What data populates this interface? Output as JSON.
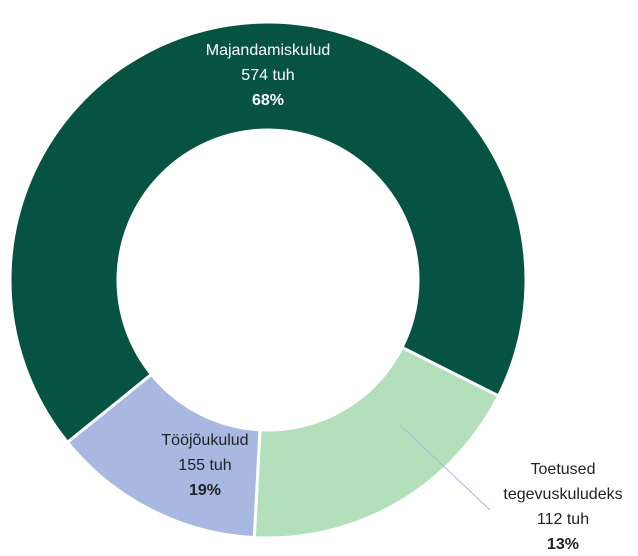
{
  "chart_data": {
    "type": "donut",
    "categories": [
      "Majandamiskulud",
      "Tööjõukulud",
      "Toetused tegevuskuludeks"
    ],
    "values": [
      574,
      155,
      112
    ],
    "value_labels": [
      "574 tuh",
      "155 tuh",
      "112 tuh"
    ],
    "percentages": [
      68,
      19,
      13
    ],
    "percentage_labels": [
      "68%",
      "19%",
      "13%"
    ],
    "colors": [
      "#065341",
      "#b3e0bb",
      "#a9b8e1"
    ]
  }
}
